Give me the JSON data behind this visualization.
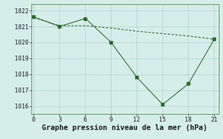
{
  "x": [
    0,
    3,
    6,
    9,
    12,
    15,
    18,
    21
  ],
  "y_main": [
    1021.6,
    1021.0,
    1021.5,
    1020.0,
    1017.8,
    1016.1,
    1017.4,
    1020.2
  ],
  "y_smooth": [
    1021.55,
    1021.05,
    1021.05,
    1020.9,
    1020.7,
    1020.55,
    1020.4,
    1020.2
  ],
  "line_color": "#2d6a2d",
  "bg_color": "#d6eeea",
  "grid_color": "#b8d8d4",
  "xlabel": "Graphe pression niveau de la mer (hPa)",
  "ylim": [
    1015.5,
    1022.4
  ],
  "xlim": [
    -0.3,
    21.5
  ],
  "yticks": [
    1016,
    1017,
    1018,
    1019,
    1020,
    1021,
    1022
  ],
  "xticks": [
    0,
    3,
    6,
    9,
    12,
    15,
    18,
    21
  ],
  "tick_fontsize": 6,
  "xlabel_fontsize": 7.5
}
